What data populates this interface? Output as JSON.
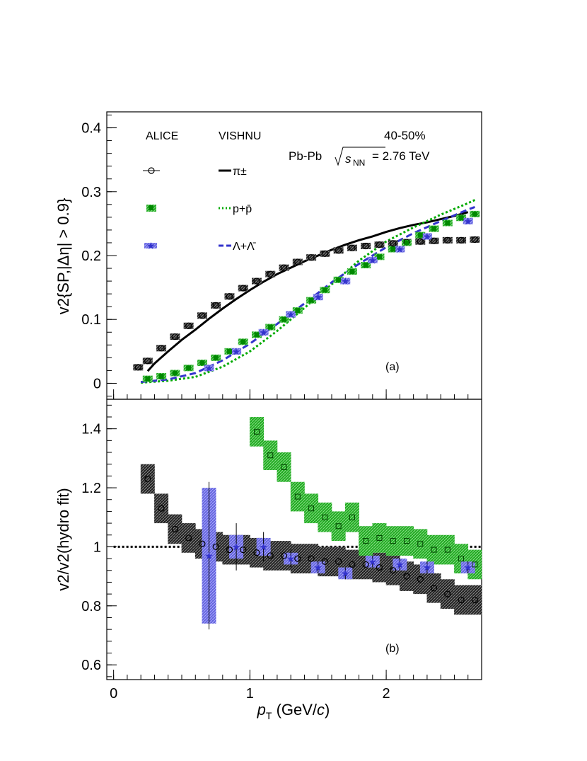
{
  "chart_data": [
    {
      "type": "scatter",
      "panel_label": "(a)",
      "annotations": {
        "centrality": "40-50%",
        "system": "Pb-Pb",
        "energy_symbol": "s",
        "energy_sub": "NN",
        "energy_value": "= 2.76 TeV"
      },
      "legend": {
        "data_header": "ALICE",
        "model_header": "VISHNU",
        "entries": [
          "π±",
          "p+p̄",
          "Λ+Λ̄"
        ]
      },
      "ylabel": "v2{SP,|Δη| > 0.9}",
      "ylim": [
        -0.025,
        0.425
      ],
      "y_ticks": [
        "0",
        "0.1",
        "0.2",
        "0.3",
        "0.4"
      ],
      "series": [
        {
          "name": "π±",
          "marker": "open-circle",
          "color": "#000000",
          "x": [
            0.18,
            0.25,
            0.35,
            0.45,
            0.55,
            0.65,
            0.75,
            0.85,
            0.95,
            1.05,
            1.15,
            1.25,
            1.35,
            1.45,
            1.55,
            1.65,
            1.75,
            1.85,
            1.95,
            2.05,
            2.15,
            2.25,
            2.35,
            2.45,
            2.55,
            2.65
          ],
          "y": [
            0.025,
            0.035,
            0.055,
            0.073,
            0.09,
            0.106,
            0.122,
            0.136,
            0.149,
            0.16,
            0.171,
            0.181,
            0.19,
            0.197,
            0.203,
            0.208,
            0.212,
            0.215,
            0.217,
            0.219,
            0.221,
            0.222,
            0.223,
            0.224,
            0.224,
            0.225
          ]
        },
        {
          "name": "p+p̄",
          "marker": "filled-square",
          "color": "#008800",
          "x": [
            0.25,
            0.35,
            0.45,
            0.55,
            0.65,
            0.75,
            0.85,
            0.95,
            1.05,
            1.15,
            1.25,
            1.35,
            1.45,
            1.55,
            1.65,
            1.75,
            1.85,
            1.95,
            2.05,
            2.15,
            2.25,
            2.35,
            2.45,
            2.55,
            2.65
          ],
          "y": [
            0.007,
            0.011,
            0.016,
            0.024,
            0.032,
            0.04,
            0.05,
            0.065,
            0.076,
            0.088,
            0.1,
            0.114,
            0.13,
            0.146,
            0.162,
            0.175,
            0.185,
            0.198,
            0.21,
            0.22,
            0.232,
            0.242,
            0.251,
            0.259,
            0.265
          ]
        },
        {
          "name": "Λ+Λ̄",
          "marker": "star",
          "color": "#3333cc",
          "x": [
            0.7,
            0.9,
            1.1,
            1.3,
            1.5,
            1.7,
            1.9,
            2.1,
            2.3,
            2.6
          ],
          "y": [
            0.024,
            0.05,
            0.08,
            0.108,
            0.135,
            0.16,
            0.193,
            0.21,
            0.23,
            0.254
          ]
        }
      ],
      "model_curves": [
        {
          "name": "π±",
          "style": "solid",
          "color": "#000000",
          "x": [
            0.25,
            0.3,
            0.4,
            0.5,
            0.6,
            0.7,
            0.8,
            0.9,
            1.0,
            1.1,
            1.2,
            1.3,
            1.4,
            1.5,
            1.6,
            1.7,
            1.8,
            1.9,
            2.0,
            2.1,
            2.2,
            2.3,
            2.4,
            2.5,
            2.6
          ],
          "y": [
            0.019,
            0.031,
            0.05,
            0.068,
            0.084,
            0.101,
            0.117,
            0.132,
            0.146,
            0.159,
            0.171,
            0.181,
            0.191,
            0.2,
            0.209,
            0.217,
            0.224,
            0.23,
            0.237,
            0.243,
            0.248,
            0.252,
            0.257,
            0.262,
            0.268
          ]
        },
        {
          "name": "p+p̄",
          "style": "dotted",
          "color": "#00aa00",
          "x": [
            0.2,
            0.4,
            0.6,
            0.8,
            1.0,
            1.2,
            1.4,
            1.6,
            1.8,
            2.0,
            2.2,
            2.4,
            2.5,
            2.6,
            2.65
          ],
          "y": [
            0.001,
            0.004,
            0.01,
            0.026,
            0.05,
            0.082,
            0.118,
            0.155,
            0.192,
            0.222,
            0.244,
            0.264,
            0.273,
            0.282,
            0.287
          ]
        },
        {
          "name": "Λ+Λ̄",
          "style": "dashed",
          "color": "#3333cc",
          "x": [
            0.2,
            0.4,
            0.6,
            0.8,
            1.0,
            1.2,
            1.4,
            1.6,
            1.8,
            2.0,
            2.2,
            2.4,
            2.5,
            2.6,
            2.65
          ],
          "y": [
            0.002,
            0.006,
            0.016,
            0.036,
            0.062,
            0.093,
            0.125,
            0.158,
            0.187,
            0.213,
            0.235,
            0.254,
            0.263,
            0.272,
            0.276
          ]
        }
      ]
    },
    {
      "type": "scatter",
      "panel_label": "(b)",
      "xlabel_main": "p",
      "xlabel_sub": "T",
      "xlabel_rest": " (GeV/",
      "xlabel_c": "c",
      "xlabel_end": ")",
      "ylabel": "v2/v2(hydro fit)",
      "xlim": [
        -0.05,
        2.7
      ],
      "ylim": [
        0.55,
        1.5
      ],
      "x_ticks": [
        "0",
        "1",
        "2"
      ],
      "y_ticks": [
        "0.6",
        "0.8",
        "1",
        "1.2",
        "1.4"
      ],
      "reference_line": 1,
      "series": [
        {
          "name": "π±",
          "marker": "open-circle",
          "color": "#000000",
          "x": [
            0.25,
            0.35,
            0.45,
            0.55,
            0.65,
            0.75,
            0.85,
            0.95,
            1.05,
            1.15,
            1.25,
            1.35,
            1.45,
            1.55,
            1.65,
            1.75,
            1.85,
            1.95,
            2.05,
            2.15,
            2.25,
            2.35,
            2.45,
            2.55,
            2.65
          ],
          "y": [
            1.23,
            1.13,
            1.06,
            1.03,
            1.01,
            1.0,
            0.99,
            0.99,
            0.98,
            0.97,
            0.97,
            0.96,
            0.96,
            0.95,
            0.95,
            0.94,
            0.94,
            0.93,
            0.92,
            0.9,
            0.89,
            0.86,
            0.84,
            0.82,
            0.82
          ]
        },
        {
          "name": "p+p̄",
          "marker": "open-square",
          "color": "#008800",
          "x": [
            1.05,
            1.15,
            1.25,
            1.35,
            1.45,
            1.55,
            1.65,
            1.75,
            1.85,
            1.95,
            2.05,
            2.15,
            2.25,
            2.35,
            2.45,
            2.55,
            2.65
          ],
          "y": [
            1.39,
            1.31,
            1.27,
            1.17,
            1.13,
            1.1,
            1.07,
            1.1,
            1.02,
            1.03,
            1.02,
            1.02,
            1.01,
            0.99,
            0.99,
            0.96,
            0.94
          ]
        },
        {
          "name": "Λ+Λ̄",
          "marker": "star",
          "color": "#3333cc",
          "x": [
            0.7,
            0.9,
            1.1,
            1.3,
            1.5,
            1.7,
            1.9,
            2.1,
            2.3,
            2.6
          ],
          "y": [
            0.97,
            1.0,
            1.0,
            0.96,
            0.93,
            0.91,
            0.95,
            0.94,
            0.93,
            0.93
          ],
          "err": [
            0.25,
            0.08,
            0.05,
            0.03,
            0.02,
            0.02,
            0.02,
            0.02,
            0.02,
            0.02
          ],
          "syst": [
            0.23,
            0.04,
            0.03,
            0.02,
            0.02,
            0.02,
            0.02,
            0.02,
            0.02,
            0.02
          ]
        }
      ]
    }
  ]
}
